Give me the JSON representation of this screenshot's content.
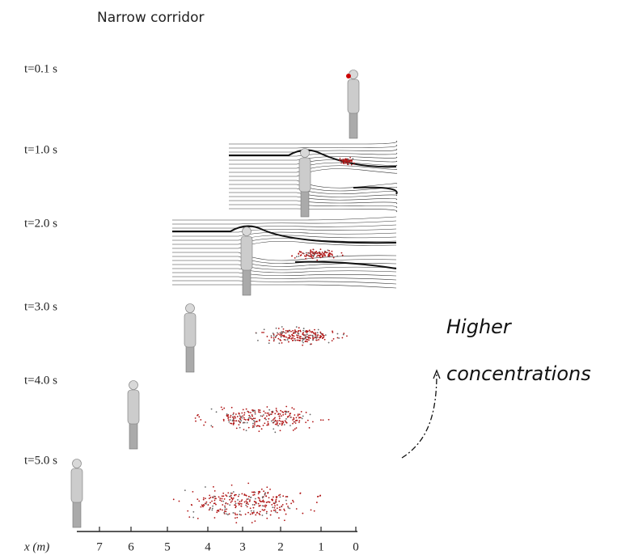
{
  "header": {
    "title": "Narrow corridor"
  },
  "frames": [
    {
      "label": "t=0.1 s"
    },
    {
      "label": "t=1.0 s"
    },
    {
      "label": "t=2.0 s"
    },
    {
      "label": "t=3.0 s"
    },
    {
      "label": "t=4.0 s"
    },
    {
      "label": "t=5.0 s"
    }
  ],
  "axis": {
    "label": "x (m)",
    "ticks": [
      7,
      6,
      5,
      4,
      3,
      2,
      1,
      0
    ]
  },
  "annotation": {
    "lines": [
      "Higher",
      "concentrations"
    ]
  }
}
